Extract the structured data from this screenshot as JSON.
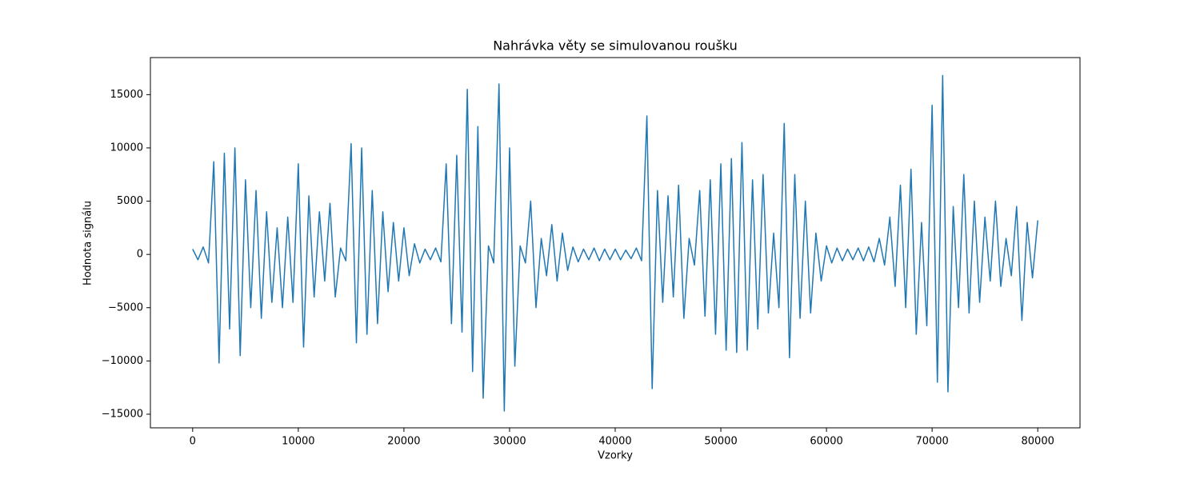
{
  "chart_data": {
    "type": "line",
    "title": "Nahrávka věty se simulovanou roušku",
    "xlabel": "Vzorky",
    "ylabel": "Hodnota signálu",
    "series": [
      {
        "color": "#1f77b4",
        "x": [
          0,
          500,
          1000,
          1500,
          2000,
          2500,
          3000,
          3500,
          4000,
          4500,
          5000,
          5500,
          6000,
          6500,
          7000,
          7500,
          8000,
          8500,
          9000,
          9500,
          10000,
          10500,
          11000,
          11500,
          12000,
          12500,
          13000,
          13500,
          14000,
          14500,
          15000,
          15500,
          16000,
          16500,
          17000,
          17500,
          18000,
          18500,
          19000,
          19500,
          20000,
          20500,
          21000,
          21500,
          22000,
          22500,
          23000,
          23500,
          24000,
          24500,
          25000,
          25500,
          26000,
          26500,
          27000,
          27500,
          28000,
          28500,
          29000,
          29500,
          30000,
          30500,
          31000,
          31500,
          32000,
          32500,
          33000,
          33500,
          34000,
          34500,
          35000,
          35500,
          36000,
          36500,
          37000,
          37500,
          38000,
          38500,
          39000,
          39500,
          40000,
          40500,
          41000,
          41500,
          42000,
          42500,
          43000,
          43500,
          44000,
          44500,
          45000,
          45500,
          46000,
          46500,
          47000,
          47500,
          48000,
          48500,
          49000,
          49500,
          50000,
          50500,
          51000,
          51500,
          52000,
          52500,
          53000,
          53500,
          54000,
          54500,
          55000,
          55500,
          56000,
          56500,
          57000,
          57500,
          58000,
          58500,
          59000,
          59500,
          60000,
          60500,
          61000,
          61500,
          62000,
          62500,
          63000,
          63500,
          64000,
          64500,
          65000,
          65500,
          66000,
          66500,
          67000,
          67500,
          68000,
          68500,
          69000,
          69500,
          70000,
          70500,
          71000,
          71500,
          72000,
          72500,
          73000,
          73500,
          74000,
          74500,
          75000,
          75500,
          76000,
          76500,
          77000,
          77500,
          78000,
          78500,
          79000,
          79500,
          80000
        ],
        "values": [
          500,
          -500,
          700,
          -800,
          8700,
          -10200,
          9500,
          -7000,
          10000,
          -9500,
          7000,
          -5000,
          6000,
          -6000,
          4000,
          -4500,
          2500,
          -5000,
          3500,
          -4500,
          8500,
          -8700,
          5500,
          -4000,
          4000,
          -2500,
          4800,
          -4000,
          600,
          -600,
          10400,
          -8300,
          10000,
          -7500,
          6000,
          -6500,
          4000,
          -3500,
          3000,
          -2500,
          2500,
          -2000,
          1000,
          -800,
          500,
          -500,
          600,
          -700,
          8500,
          -6500,
          9300,
          -7300,
          15500,
          -11000,
          12000,
          -13500,
          800,
          -800,
          16000,
          -14700,
          10000,
          -10500,
          800,
          -800,
          5000,
          -5000,
          1500,
          -2000,
          2800,
          -2500,
          2000,
          -1500,
          700,
          -700,
          500,
          -500,
          600,
          -600,
          500,
          -500,
          500,
          -500,
          400,
          -400,
          600,
          -600,
          13000,
          -12600,
          6000,
          -4500,
          5500,
          -4000,
          6500,
          -6000,
          1500,
          -1000,
          6000,
          -5800,
          7000,
          -7500,
          8500,
          -9000,
          9000,
          -9200,
          10500,
          -9000,
          7000,
          -7000,
          7500,
          -5500,
          2000,
          -5000,
          12300,
          -9700,
          7500,
          -6000,
          5000,
          -5500,
          2000,
          -2500,
          800,
          -800,
          600,
          -600,
          500,
          -500,
          600,
          -600,
          700,
          -700,
          1500,
          -1000,
          3500,
          -3000,
          6500,
          -5000,
          8000,
          -7500,
          3000,
          -6700,
          14000,
          -12000,
          16800,
          -12900,
          4500,
          -5000,
          7500,
          -5500,
          5000,
          -4500,
          3500,
          -2500,
          5000,
          -3000,
          1500,
          -2000,
          4500,
          -6200,
          3000,
          -2200,
          3200
        ]
      }
    ],
    "xlim": [
      -4000,
      84000
    ],
    "ylim": [
      -16280,
      18480
    ],
    "xticks": [
      0,
      10000,
      20000,
      30000,
      40000,
      50000,
      60000,
      70000,
      80000
    ],
    "yticks": [
      {
        "value": -15000,
        "label": "−15000"
      },
      {
        "value": -10000,
        "label": "−10000"
      },
      {
        "value": -5000,
        "label": "−5000"
      },
      0,
      5000,
      10000,
      15000
    ]
  }
}
